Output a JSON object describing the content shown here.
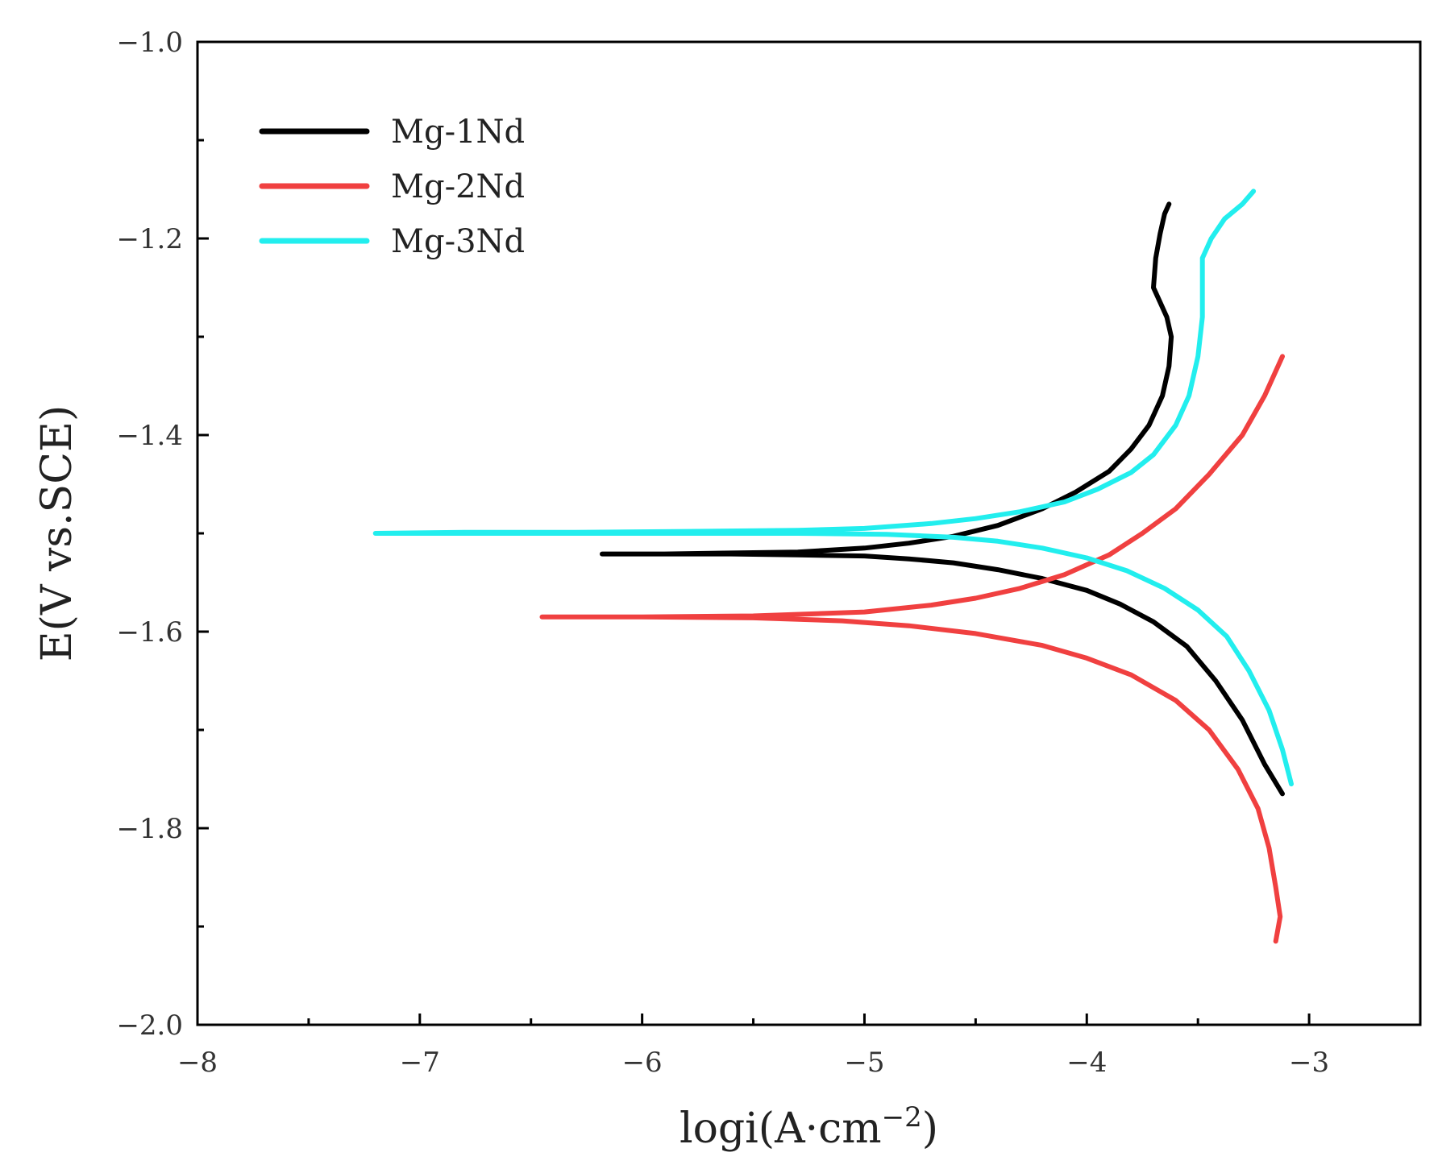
{
  "chart_data": {
    "type": "line",
    "title": "",
    "xlabel": "logi(A·cm",
    "xlabel_sup": "−2",
    "xlabel_close": ")",
    "ylabel": "E(V vs.SCE)",
    "xlim": [
      -8,
      -2.5
    ],
    "ylim": [
      -2.0,
      -1.0
    ],
    "x_ticks": [
      -8,
      -7,
      -6,
      -5,
      -4,
      -3
    ],
    "x_tick_labels": [
      "−8",
      "−7",
      "−6",
      "−5",
      "−4",
      "−3"
    ],
    "x_minor_ticks": [
      -7.5,
      -6.5,
      -5.5,
      -4.5,
      -3.5
    ],
    "y_ticks": [
      -2.0,
      -1.8,
      -1.6,
      -1.4,
      -1.2,
      -1.0
    ],
    "y_tick_labels": [
      "−2.0",
      "−1.8",
      "−1.6",
      "−1.4",
      "−1.2",
      "−1.0"
    ],
    "y_minor_ticks": [
      -1.9,
      -1.7,
      -1.5,
      -1.3,
      -1.1
    ],
    "grid": false,
    "legend_position": "top-left",
    "series": [
      {
        "name": "Mg-1Nd",
        "color": "#000000",
        "x": [
          -3.12,
          -3.2,
          -3.3,
          -3.42,
          -3.55,
          -3.7,
          -3.85,
          -4.0,
          -4.2,
          -4.4,
          -4.6,
          -4.8,
          -5.0,
          -5.3,
          -5.6,
          -5.9,
          -6.18,
          -5.9,
          -5.6,
          -5.3,
          -5.0,
          -4.8,
          -4.6,
          -4.4,
          -4.2,
          -4.05,
          -3.9,
          -3.8,
          -3.72,
          -3.66,
          -3.63,
          -3.62,
          -3.64,
          -3.67,
          -3.7,
          -3.69,
          -3.67,
          -3.65,
          -3.63
        ],
        "y": [
          -1.765,
          -1.735,
          -1.69,
          -1.65,
          -1.615,
          -1.59,
          -1.572,
          -1.558,
          -1.546,
          -1.537,
          -1.53,
          -1.526,
          -1.523,
          -1.522,
          -1.521,
          -1.521,
          -1.521,
          -1.521,
          -1.52,
          -1.519,
          -1.515,
          -1.51,
          -1.503,
          -1.492,
          -1.475,
          -1.458,
          -1.437,
          -1.414,
          -1.39,
          -1.36,
          -1.33,
          -1.3,
          -1.28,
          -1.265,
          -1.25,
          -1.22,
          -1.195,
          -1.175,
          -1.165
        ]
      },
      {
        "name": "Mg-2Nd",
        "color": "#f04040",
        "x": [
          -3.15,
          -3.13,
          -3.15,
          -3.18,
          -3.23,
          -3.32,
          -3.45,
          -3.6,
          -3.8,
          -4.0,
          -4.2,
          -4.5,
          -4.8,
          -5.1,
          -5.5,
          -6.0,
          -6.45,
          -6.0,
          -5.5,
          -5.0,
          -4.7,
          -4.5,
          -4.3,
          -4.1,
          -3.9,
          -3.75,
          -3.6,
          -3.45,
          -3.3,
          -3.2,
          -3.12
        ],
        "y": [
          -1.915,
          -1.89,
          -1.86,
          -1.82,
          -1.78,
          -1.74,
          -1.7,
          -1.67,
          -1.644,
          -1.627,
          -1.614,
          -1.602,
          -1.594,
          -1.589,
          -1.586,
          -1.585,
          -1.585,
          -1.585,
          -1.584,
          -1.58,
          -1.573,
          -1.566,
          -1.556,
          -1.542,
          -1.522,
          -1.5,
          -1.475,
          -1.44,
          -1.4,
          -1.36,
          -1.32
        ]
      },
      {
        "name": "Mg-3Nd",
        "color": "#22eeee",
        "x": [
          -3.08,
          -3.12,
          -3.18,
          -3.27,
          -3.37,
          -3.5,
          -3.65,
          -3.82,
          -4.0,
          -4.2,
          -4.4,
          -4.6,
          -4.9,
          -5.3,
          -5.8,
          -6.3,
          -6.8,
          -7.2,
          -6.8,
          -6.3,
          -5.8,
          -5.3,
          -5.0,
          -4.7,
          -4.5,
          -4.3,
          -4.1,
          -3.95,
          -3.8,
          -3.7,
          -3.6,
          -3.54,
          -3.5,
          -3.48,
          -3.48,
          -3.44,
          -3.38,
          -3.3,
          -3.25
        ],
        "y": [
          -1.755,
          -1.72,
          -1.68,
          -1.64,
          -1.605,
          -1.578,
          -1.556,
          -1.538,
          -1.525,
          -1.515,
          -1.508,
          -1.504,
          -1.501,
          -1.5,
          -1.5,
          -1.5,
          -1.5,
          -1.5,
          -1.499,
          -1.499,
          -1.498,
          -1.497,
          -1.495,
          -1.49,
          -1.485,
          -1.478,
          -1.468,
          -1.455,
          -1.438,
          -1.42,
          -1.39,
          -1.36,
          -1.32,
          -1.28,
          -1.22,
          -1.2,
          -1.18,
          -1.165,
          -1.152
        ]
      }
    ]
  }
}
